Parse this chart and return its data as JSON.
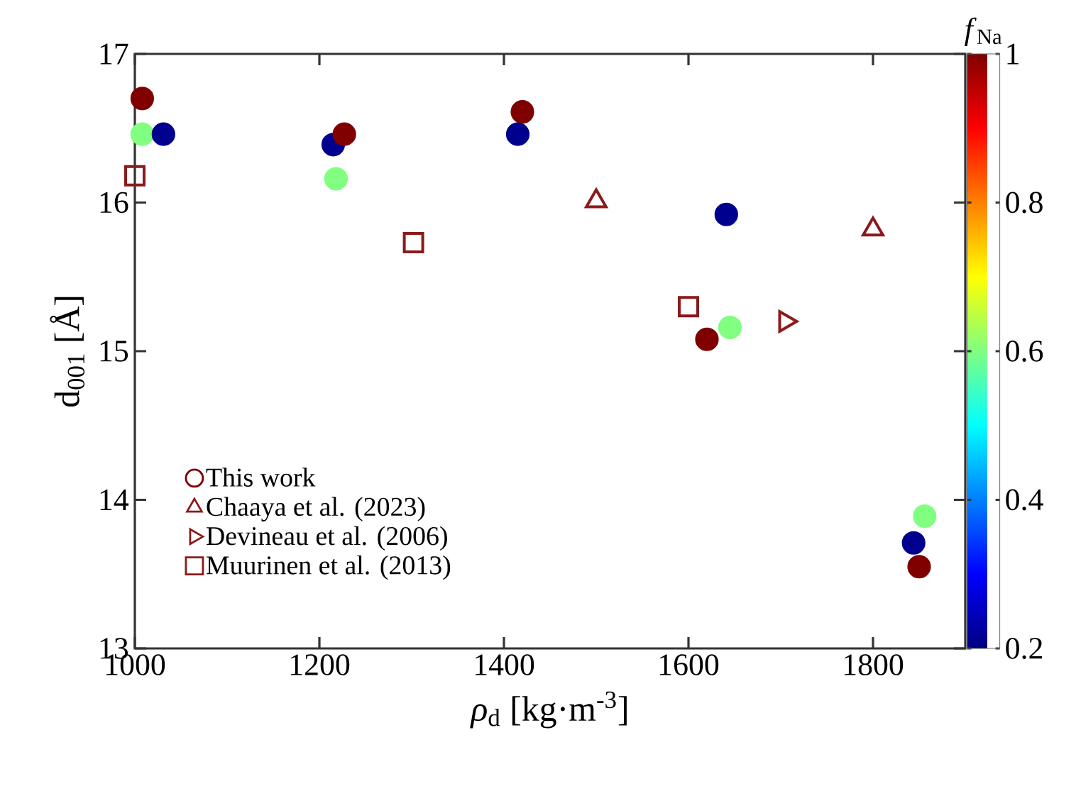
{
  "chart_data": {
    "type": "scatter",
    "xlabel": "*ρ*$_{d}$ [kg·m$^{-3}$]",
    "ylabel": "d$_{001}$ [Å]",
    "clabel": "*f*$_{Na}$",
    "xlim": [
      1000,
      1900
    ],
    "xticks": [
      1000,
      1200,
      1400,
      1600,
      1800
    ],
    "ylim": [
      13,
      17
    ],
    "yticks": [
      13,
      14,
      15,
      16,
      17
    ],
    "clim": [
      0.2,
      1
    ],
    "cticks": [
      0.2,
      0.4,
      0.6,
      0.8,
      1
    ],
    "grid": false,
    "legend": "bottom left",
    "series": [
      {
        "name": "This work",
        "marker": "circle",
        "x": [
          1008,
          1008,
          1031,
          1215,
          1227,
          1218,
          1420,
          1415,
          1641,
          1645,
          1620,
          1856,
          1844,
          1850
        ],
        "values": [
          16.7,
          16.46,
          16.46,
          16.39,
          16.46,
          16.16,
          16.61,
          16.46,
          15.92,
          15.16,
          15.08,
          13.89,
          13.71,
          13.55
        ],
        "colors": [
          "#800000",
          "#80ff80",
          "#00008f",
          "#00008f",
          "#800000",
          "#80ff80",
          "#800000",
          "#00008f",
          "#00008f",
          "#80ff80",
          "#800000",
          "#80ff80",
          "#00008f",
          "#800000"
        ]
      },
      {
        "name": "Chaaya et al. (2023)",
        "marker": "triangle",
        "color": "#8b1a1a",
        "x": [
          1500,
          1800
        ],
        "values": [
          16.01,
          15.82
        ]
      },
      {
        "name": "Devineau et al. (2006)",
        "marker": "triangle-right",
        "color": "#8b1a1a",
        "x": [
          1705
        ],
        "values": [
          15.2
        ]
      },
      {
        "name": "Muurinen et al. (2013)",
        "marker": "square",
        "color": "#8b1a1a",
        "x": [
          1000,
          1302,
          1600
        ],
        "values": [
          16.18,
          15.73,
          15.3
        ]
      }
    ]
  }
}
